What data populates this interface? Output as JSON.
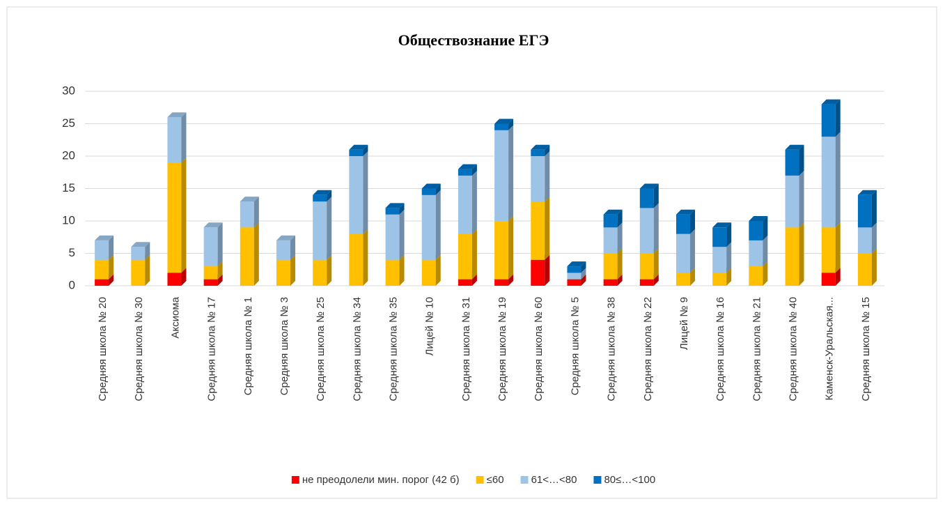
{
  "chart_data": {
    "type": "bar",
    "stacked": true,
    "title": "Обществознание  ЕГЭ",
    "categories": [
      "Средняя школа № 20",
      "Средняя школа № 30",
      "Аксиома",
      "Средняя школа № 17",
      "Средняя  школа № 1",
      "Средняя  школа № 3",
      "Средняя школа № 25",
      "Средняя школа № 34",
      "Средняя школа № 35",
      "Лицей № 10",
      "Средняя школа № 31",
      "Средняя школа № 19",
      "Средняя школа № 60",
      "Средняя школа № 5",
      "Средняя школа № 38",
      "Средняя школа № 22",
      "Лицей № 9",
      "Средняя школа № 16",
      "Средняя школа № 21",
      "Средняя школа № 40",
      "Каменск-Уральская...",
      "Средняя школа № 15"
    ],
    "series": [
      {
        "name": "не преодолели мин. порог (42 б)",
        "color": "#ff0000",
        "values": [
          1,
          0,
          2,
          1,
          0,
          0,
          0,
          0,
          0,
          0,
          1,
          1,
          4,
          1,
          1,
          1,
          0,
          0,
          0,
          0,
          2,
          0
        ]
      },
      {
        "name": "≤60",
        "color": "#ffc000",
        "values": [
          3,
          4,
          17,
          2,
          9,
          4,
          4,
          8,
          4,
          4,
          7,
          9,
          9,
          0,
          4,
          4,
          2,
          2,
          3,
          9,
          7,
          5
        ]
      },
      {
        "name": "61<…<80",
        "color": "#9dc3e6",
        "values": [
          3,
          2,
          7,
          6,
          4,
          3,
          9,
          12,
          7,
          10,
          9,
          14,
          7,
          1,
          4,
          7,
          6,
          4,
          4,
          8,
          14,
          4
        ]
      },
      {
        "name": "80≤…<100",
        "color": "#0070c0",
        "values": [
          0,
          0,
          0,
          0,
          0,
          0,
          1,
          1,
          1,
          1,
          1,
          1,
          1,
          1,
          2,
          3,
          3,
          3,
          3,
          4,
          5,
          5
        ]
      }
    ],
    "ylim": [
      0,
      30
    ],
    "yticks": [
      0,
      5,
      10,
      15,
      20,
      25,
      30
    ],
    "grid": true,
    "legend": "bottom"
  }
}
